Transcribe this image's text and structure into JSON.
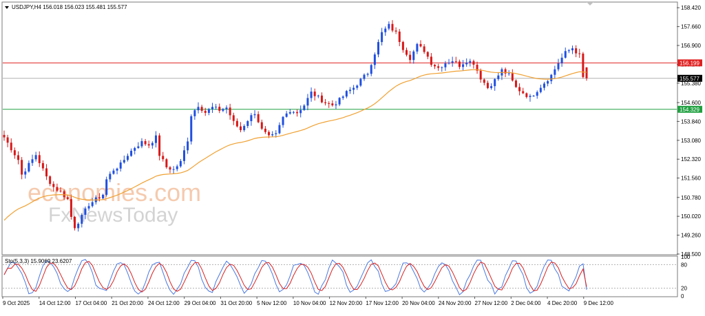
{
  "header": {
    "symbol_info": "USDJPY,H4  156.018 156.023 155.481 155.577",
    "indicator_label": "Sto(5,3,3) 15.9069 23.6207"
  },
  "watermark": {
    "line1": "economies.com",
    "line2": "FxNewsToday"
  },
  "colors": {
    "bull_candle": "#1f4fe0",
    "bear_candle": "#d81818",
    "moving_average": "#f0a030",
    "resistance_line": "#e02020",
    "support_line": "#20a040",
    "current_price_line": "#b0b0b0",
    "stoch_main": "#4a78e0",
    "stoch_signal": "#d82020"
  },
  "chart_data": [
    {
      "type": "candlestick",
      "title": "USDJPY,H4",
      "ohlc_last": {
        "open": 156.018,
        "high": 156.023,
        "low": 155.481,
        "close": 155.577
      },
      "y_ticks": [
        158.42,
        157.66,
        156.9,
        156.14,
        155.38,
        154.6,
        153.84,
        153.08,
        152.32,
        151.56,
        150.78,
        150.02,
        149.26,
        148.5
      ],
      "y_tick_labels": [
        "158.420",
        "157.660",
        "156.900",
        "156.140",
        "155.380",
        "154.600",
        "153.840",
        "153.080",
        "152.320",
        "151.560",
        "150.780",
        "150.020",
        "149.260",
        "148.500"
      ],
      "ylim": [
        148.5,
        158.62
      ],
      "x_tick_labels": [
        "9 Oct 2025",
        "14 Oct 12:00",
        "17 Oct 04:00",
        "21 Oct 20:00",
        "24 Oct 12:00",
        "29 Oct 04:00",
        "31 Oct 20:00",
        "5 Nov 12:00",
        "10 Nov 04:00",
        "12 Nov 20:00",
        "17 Nov 12:00",
        "20 Nov 04:00",
        "24 Nov 20:00",
        "27 Nov 12:00",
        "2 Dec 04:00",
        "4 Dec 20:00",
        "9 Dec 12:00"
      ],
      "price_labels": [
        {
          "name": "resistance",
          "value": 156.199,
          "label": "156.199"
        },
        {
          "name": "current",
          "value": 155.577,
          "label": "155.577"
        },
        {
          "name": "support",
          "value": 154.329,
          "label": "154.329"
        }
      ],
      "close_path": [
        [
          0,
          153.2
        ],
        [
          4,
          152.3
        ],
        [
          5,
          151.7
        ],
        [
          7,
          152.1
        ],
        [
          9,
          152.5
        ],
        [
          11,
          151.9
        ],
        [
          12,
          151.6
        ],
        [
          14,
          151.2
        ],
        [
          16,
          151.0
        ],
        [
          18,
          150.7
        ],
        [
          19,
          150.0
        ],
        [
          20,
          149.6
        ],
        [
          22,
          150.0
        ],
        [
          24,
          150.5
        ],
        [
          26,
          150.7
        ],
        [
          28,
          150.9
        ],
        [
          29,
          151.5
        ],
        [
          31,
          151.9
        ],
        [
          33,
          152.1
        ],
        [
          35,
          152.5
        ],
        [
          37,
          152.8
        ],
        [
          39,
          153.0
        ],
        [
          41,
          152.9
        ],
        [
          43,
          153.2
        ],
        [
          44,
          152.5
        ],
        [
          46,
          152.0
        ],
        [
          48,
          151.9
        ],
        [
          50,
          152.2
        ],
        [
          52,
          153.1
        ],
        [
          53,
          154.1
        ],
        [
          55,
          154.5
        ],
        [
          57,
          154.2
        ],
        [
          59,
          154.4
        ],
        [
          61,
          154.3
        ],
        [
          63,
          154.4
        ],
        [
          65,
          153.8
        ],
        [
          67,
          153.5
        ],
        [
          69,
          153.9
        ],
        [
          71,
          154.2
        ],
        [
          73,
          153.5
        ],
        [
          75,
          153.2
        ],
        [
          77,
          153.3
        ],
        [
          79,
          154.0
        ],
        [
          81,
          154.3
        ],
        [
          83,
          154.2
        ],
        [
          85,
          154.5
        ],
        [
          87,
          155.0
        ],
        [
          89,
          154.8
        ],
        [
          91,
          154.6
        ],
        [
          93,
          154.5
        ],
        [
          95,
          154.7
        ],
        [
          97,
          155.0
        ],
        [
          99,
          155.2
        ],
        [
          101,
          155.5
        ],
        [
          103,
          155.8
        ],
        [
          105,
          156.6
        ],
        [
          107,
          157.4
        ],
        [
          109,
          157.7
        ],
        [
          111,
          157.4
        ],
        [
          113,
          156.8
        ],
        [
          115,
          156.4
        ],
        [
          117,
          156.9
        ],
        [
          119,
          156.7
        ],
        [
          121,
          156.2
        ],
        [
          123,
          156.0
        ],
        [
          125,
          156.2
        ],
        [
          127,
          156.3
        ],
        [
          129,
          156.1
        ],
        [
          131,
          156.3
        ],
        [
          133,
          156.2
        ],
        [
          135,
          155.6
        ],
        [
          137,
          155.2
        ],
        [
          139,
          155.5
        ],
        [
          141,
          155.9
        ],
        [
          143,
          155.7
        ],
        [
          145,
          155.2
        ],
        [
          147,
          155.0
        ],
        [
          149,
          154.8
        ],
        [
          151,
          155.1
        ],
        [
          153,
          155.4
        ],
        [
          155,
          155.7
        ],
        [
          157,
          156.2
        ],
        [
          159,
          156.6
        ],
        [
          161,
          156.8
        ],
        [
          163,
          156.5
        ],
        [
          164,
          155.6
        ]
      ],
      "n_candles": 166,
      "series": [
        {
          "name": "",
          "values": []
        }
      ]
    },
    {
      "type": "line",
      "title": "Sto(5,3,3)",
      "main_value": 15.9069,
      "signal_value": 23.6207,
      "y_ticks": [
        100,
        80,
        20,
        0
      ],
      "y_tick_labels": [
        "100",
        "80",
        "20",
        "0"
      ],
      "levels": [
        80,
        20
      ],
      "ylim": [
        0,
        100
      ]
    }
  ]
}
